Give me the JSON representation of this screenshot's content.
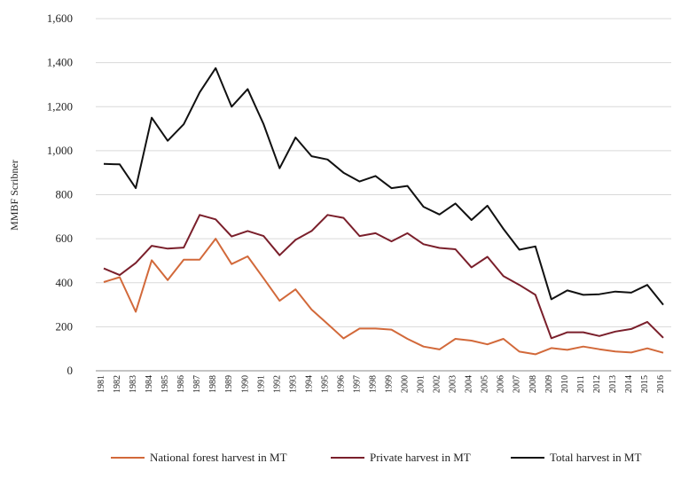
{
  "chart_data": {
    "type": "line",
    "y_label": "MMBF Scribner",
    "categories": [
      "1981",
      "1982",
      "1983",
      "1984",
      "1985",
      "1986",
      "1987",
      "1988",
      "1989",
      "1990",
      "1991",
      "1992",
      "1993",
      "1994",
      "1995",
      "1996",
      "1997",
      "1998",
      "1999",
      "2000",
      "2001",
      "2002",
      "2003",
      "2004",
      "2005",
      "2006",
      "2007",
      "2008",
      "2009",
      "2010",
      "2011",
      "2012",
      "2013",
      "2014",
      "2015",
      "2016"
    ],
    "series": [
      {
        "name": "National forest harvest in MT",
        "color": "#d2693a",
        "values": [
          403,
          425,
          268,
          502,
          412,
          505,
          505,
          600,
          485,
          520,
          420,
          318,
          370,
          278,
          213,
          147,
          192,
          192,
          187,
          145,
          110,
          97,
          145,
          137,
          120,
          145,
          87,
          75,
          103,
          95,
          110,
          98,
          88,
          83,
          102,
          82
        ]
      },
      {
        "name": "Private harvest in MT",
        "color": "#7a1f2b",
        "values": [
          465,
          435,
          490,
          568,
          555,
          560,
          708,
          688,
          610,
          635,
          612,
          525,
          595,
          635,
          708,
          695,
          612,
          625,
          588,
          625,
          575,
          558,
          552,
          470,
          518,
          430,
          390,
          345,
          148,
          175,
          175,
          158,
          178,
          190,
          222,
          150
        ]
      },
      {
        "name": "Total harvest in MT",
        "color": "#111111",
        "values": [
          940,
          938,
          830,
          1150,
          1045,
          1120,
          1265,
          1375,
          1200,
          1280,
          1120,
          920,
          1060,
          975,
          960,
          900,
          860,
          885,
          830,
          840,
          745,
          710,
          760,
          685,
          750,
          645,
          550,
          565,
          325,
          365,
          345,
          348,
          360,
          355,
          390,
          300
        ]
      }
    ],
    "ylim": [
      0,
      1600
    ],
    "yticks": [
      0,
      200,
      400,
      600,
      800,
      {
        "value": 1000,
        "label": "1,000"
      },
      {
        "value": 1200,
        "label": "1,200"
      },
      {
        "value": 1400,
        "label": "1,400"
      },
      {
        "value": 1600,
        "label": "1,600"
      }
    ],
    "grid": true,
    "legend": "bottom"
  }
}
